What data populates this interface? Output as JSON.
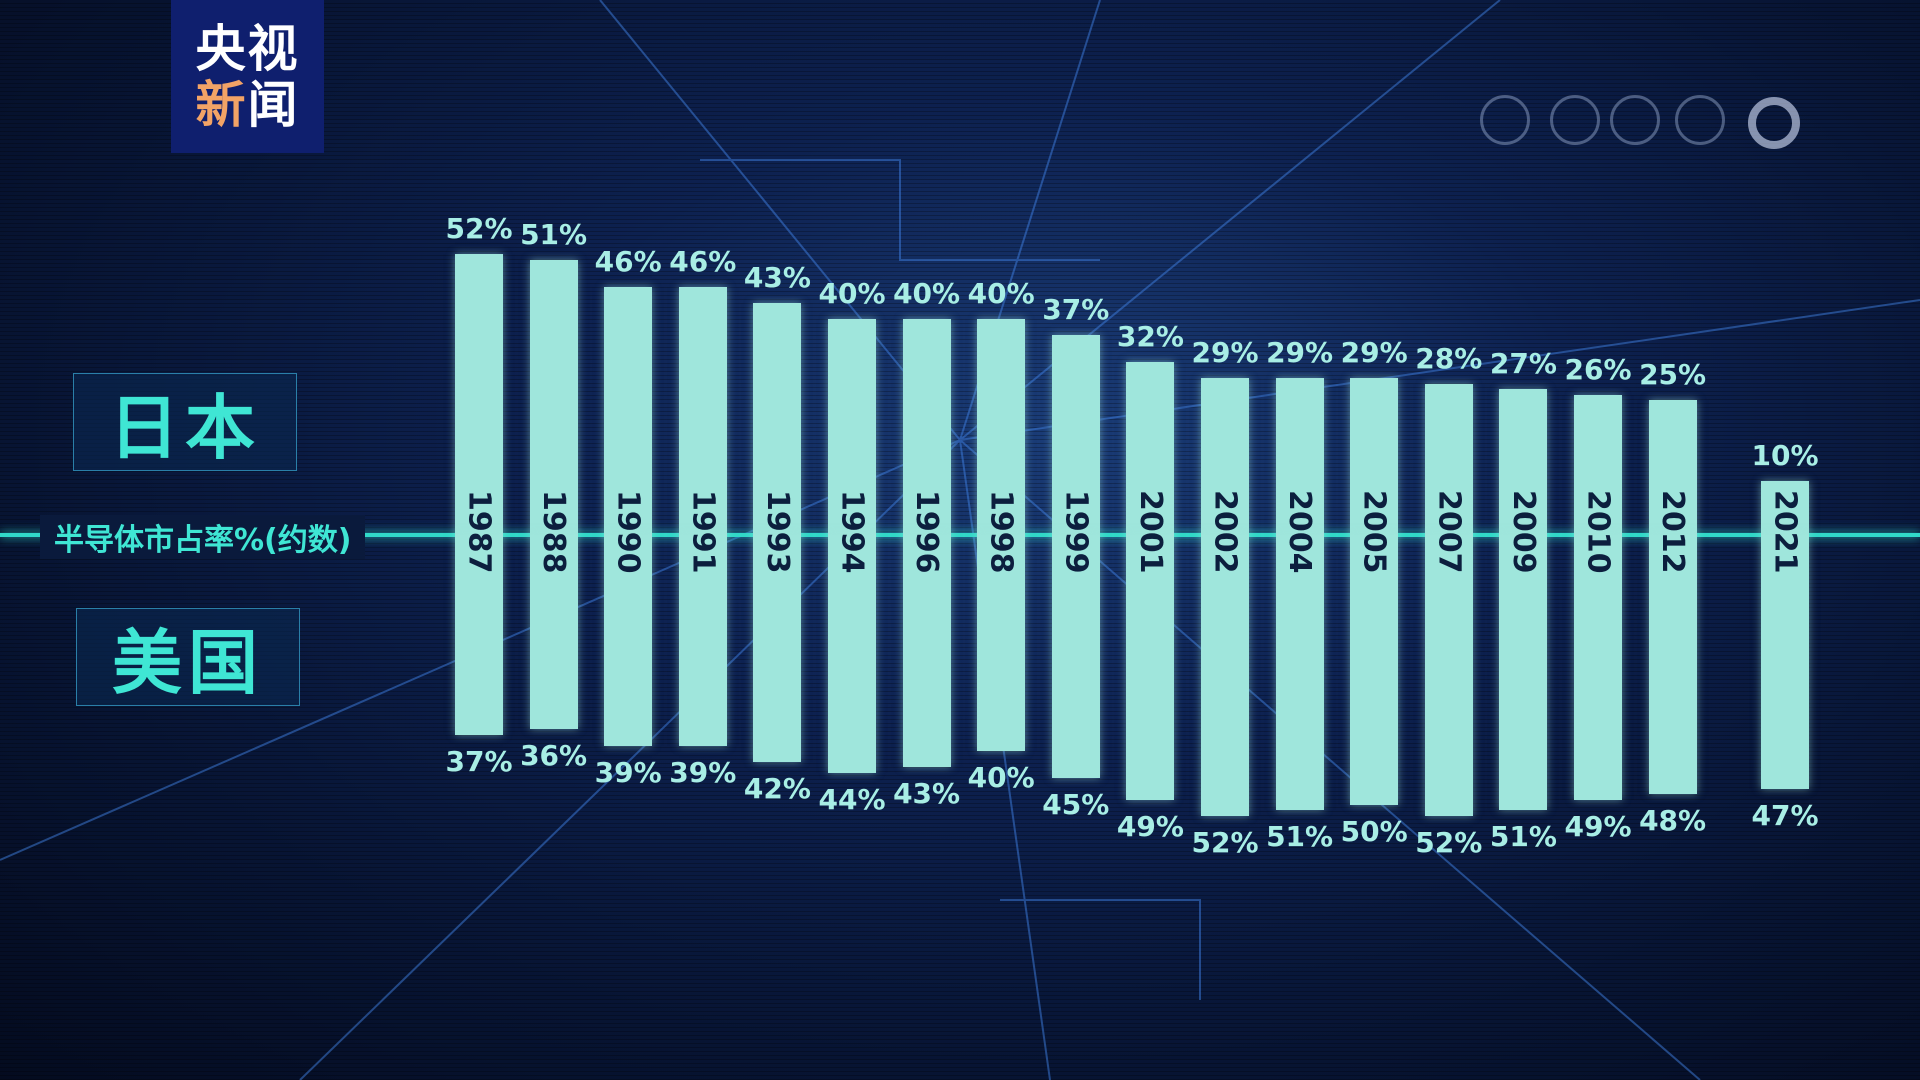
{
  "logo": {
    "line1": "央视",
    "line2_a": "新",
    "line2_b": "闻"
  },
  "legend": {
    "top_country": "日本",
    "bottom_country": "美国",
    "axis_label": "半导体市占率%(约数)"
  },
  "colors": {
    "bar": "#9fe6dc",
    "accent": "#31d9c8",
    "label": "#3fe6d4"
  },
  "chart_data": {
    "type": "bar",
    "title": "",
    "categories": [
      "1987",
      "1988",
      "1990",
      "1991",
      "1993",
      "1994",
      "1996",
      "1998",
      "1999",
      "2001",
      "2002",
      "2004",
      "2005",
      "2007",
      "2009",
      "2010",
      "2012",
      "2021"
    ],
    "series": [
      {
        "name": "日本",
        "values": [
          52,
          51,
          46,
          46,
          43,
          40,
          40,
          40,
          37,
          32,
          29,
          29,
          29,
          28,
          27,
          26,
          25,
          10
        ]
      },
      {
        "name": "美国",
        "values": [
          37,
          36,
          39,
          39,
          42,
          44,
          43,
          40,
          45,
          49,
          52,
          51,
          50,
          52,
          51,
          49,
          48,
          47
        ]
      }
    ],
    "unit": "%",
    "layout": "diverging bars around a center line; 日本 above, 美国 below"
  }
}
